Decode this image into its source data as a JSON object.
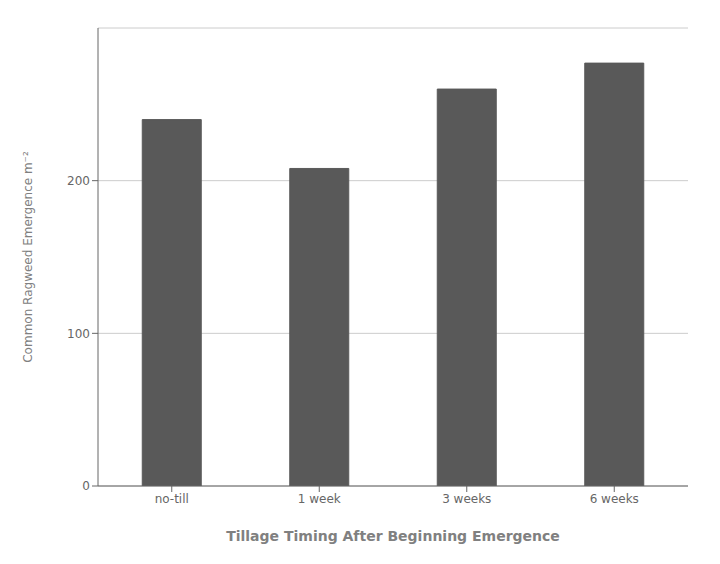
{
  "chart_data": {
    "type": "bar",
    "categories": [
      "no-till",
      "1 week",
      "3 weeks",
      "6 weeks"
    ],
    "values": [
      240,
      208,
      260,
      277
    ],
    "color": "#595959",
    "xlabel": "Tillage Timing After Beginning Emergence",
    "ylabel": "Common Ragweed Emergence m⁻²",
    "ylim": [
      0,
      300
    ],
    "yticks": [
      0,
      100,
      200
    ],
    "grid": true
  }
}
